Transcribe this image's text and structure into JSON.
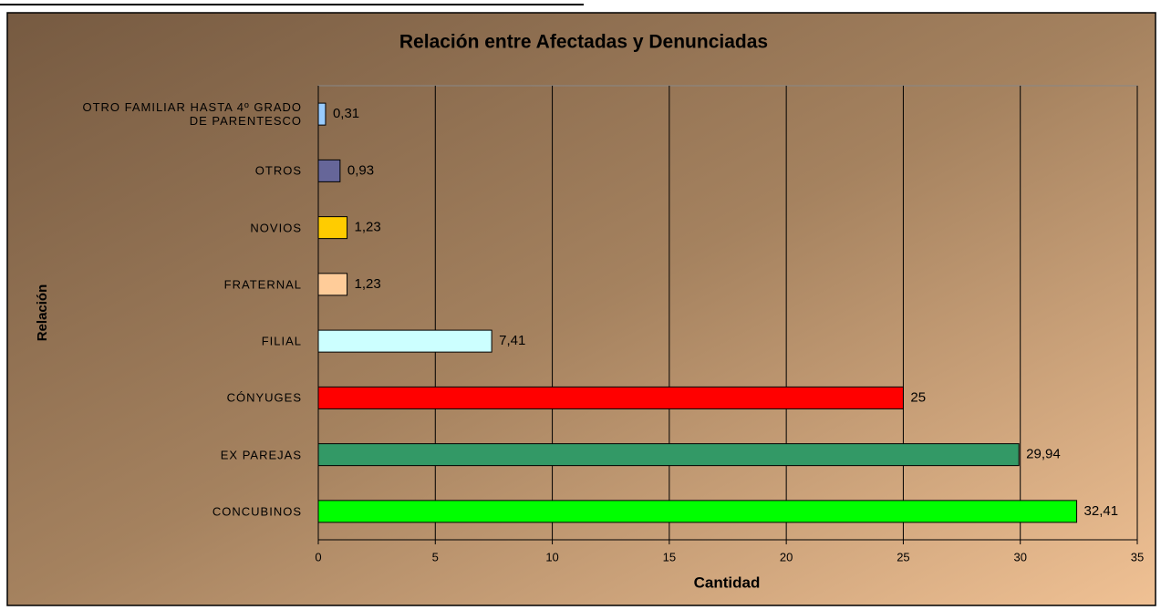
{
  "chart_data": {
    "type": "bar",
    "orientation": "horizontal",
    "title": "Relación entre Afectadas y Denunciadas",
    "xlabel": "Cantidad",
    "ylabel": "Relación",
    "categories": [
      "OTRO FAMILIAR HASTA 4º GRADO DE PARENTESCO",
      "OTROS",
      "NOVIOS",
      "FRATERNAL",
      "FILIAL",
      "CÓNYUGES",
      "EX PAREJAS",
      "CONCUBINOS"
    ],
    "values": [
      0.31,
      0.93,
      1.23,
      1.23,
      7.41,
      25,
      29.94,
      32.41
    ],
    "value_labels": [
      "0,31",
      "0,93",
      "1,23",
      "1,23",
      "7,41",
      "25",
      "29,94",
      "32,41"
    ],
    "colors": [
      "#99ccff",
      "#666699",
      "#ffcc00",
      "#ffcc99",
      "#ccffff",
      "#ff0000",
      "#339966",
      "#00ff00"
    ],
    "xlim": [
      0,
      35
    ],
    "xticks": [
      0,
      5,
      10,
      15,
      20,
      25,
      30,
      35
    ],
    "grid": true
  }
}
